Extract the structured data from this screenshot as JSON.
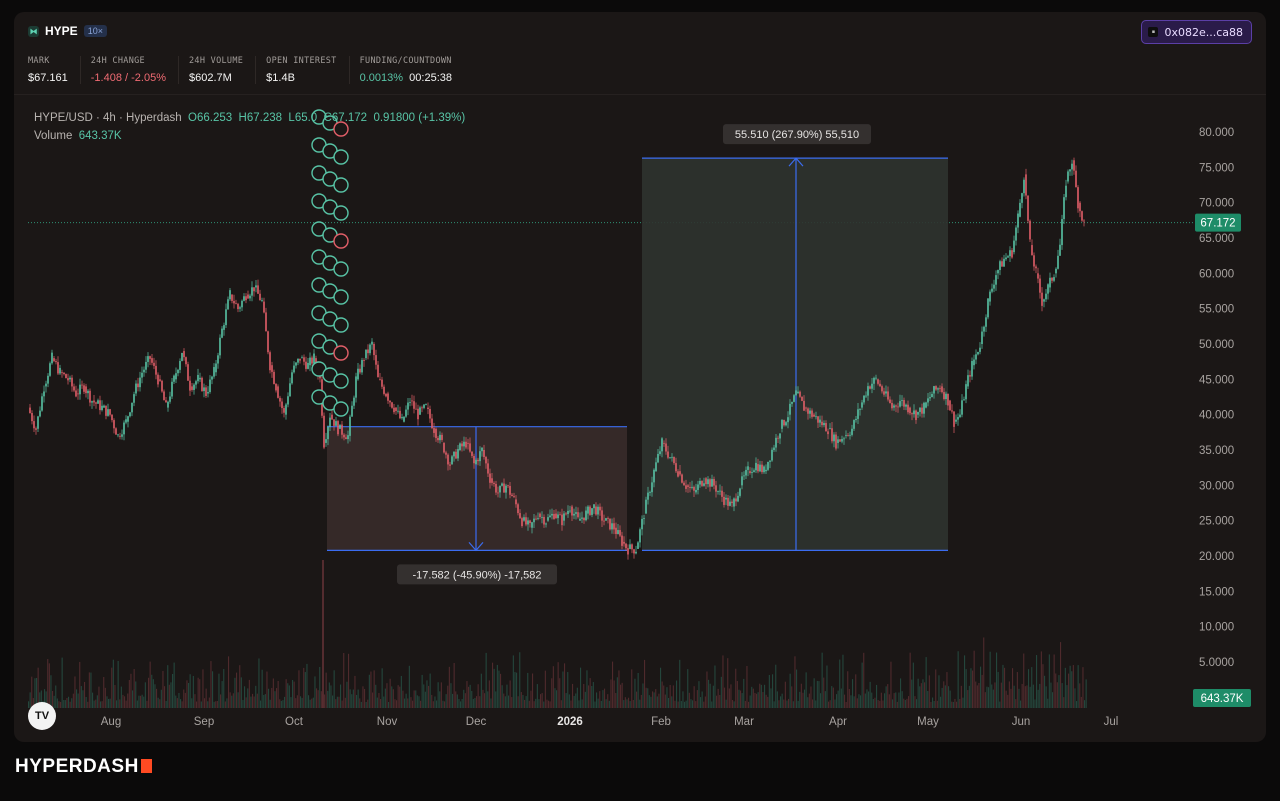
{
  "header": {
    "symbol": "HYPE",
    "leverage": "10×",
    "wallet": "0x082e...ca88",
    "stats": [
      {
        "label": "MARK",
        "value": "$67.161",
        "tone": ""
      },
      {
        "label": "24H CHANGE",
        "value": "-1.408 / -2.05%",
        "tone": "neg"
      },
      {
        "label": "24H VOLUME",
        "value": "$602.7M",
        "tone": ""
      },
      {
        "label": "OPEN INTEREST",
        "value": "$1.4B",
        "tone": ""
      }
    ],
    "funding": {
      "label": "FUNDING/COUNTDOWN",
      "rate": "0.0013%",
      "countdown": "00:25:38"
    }
  },
  "chart": {
    "pair": "HYPE/USD · 4h · Hyperdash",
    "ohlc": {
      "o": "O66.253",
      "h": "H67.238",
      "l": "L65.0",
      "c": "C67.172"
    },
    "change": "0.91800 (+1.39%)",
    "volume_label": "Volume",
    "volume_value": "643.37K",
    "price_tag": "67.172",
    "volume_tag": "643.37K",
    "x_labels": [
      "Aug",
      "Sep",
      "Oct",
      "Nov",
      "Dec",
      "2026",
      "Feb",
      "Mar",
      "Apr",
      "May",
      "Jun",
      "Jul"
    ],
    "y_labels": [
      "80.000",
      "75.000",
      "70.000",
      "65.000",
      "60.000",
      "55.000",
      "50.000",
      "45.000",
      "40.000",
      "35.000",
      "30.000",
      "25.000",
      "20.000",
      "15.000",
      "10.000",
      "5.0000"
    ],
    "measure_down": "-17.582 (-45.90%) -17,582",
    "measure_up": "55.510 (267.90%) 55,510",
    "colors": {
      "up": "#58c4a6",
      "down": "#e35f69",
      "range_down": "#3a2d2c",
      "range_up": "#2f332f",
      "measure_line": "#3b6cf0"
    }
  },
  "brand": "HYPERDASH"
}
